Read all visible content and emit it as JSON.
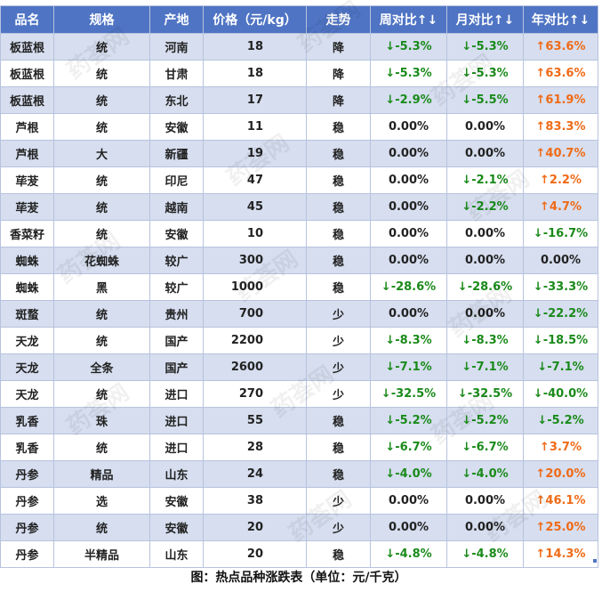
{
  "headers": [
    "品名",
    "规格",
    "产地",
    "价格（元/kg）",
    "走势",
    "周对比↑↓",
    "月对比↑↓",
    "年对比↑↓"
  ],
  "rows": [
    {
      "name": "板蓝根",
      "spec": "统",
      "origin": "河南",
      "price": "18",
      "trend": "降",
      "week": "↓-5.3%",
      "month": "↓-5.3%",
      "year": "↑63.6%"
    },
    {
      "name": "板蓝根",
      "spec": "统",
      "origin": "甘肃",
      "price": "18",
      "trend": "降",
      "week": "↓-5.3%",
      "month": "↓-5.3%",
      "year": "↑63.6%"
    },
    {
      "name": "板蓝根",
      "spec": "统",
      "origin": "东北",
      "price": "17",
      "trend": "降",
      "week": "↓-2.9%",
      "month": "↓-5.5%",
      "year": "↑61.9%"
    },
    {
      "name": "芦根",
      "spec": "统",
      "origin": "安徽",
      "price": "11",
      "trend": "稳",
      "week": "0.00%",
      "month": "0.00%",
      "year": "↑83.3%"
    },
    {
      "name": "芦根",
      "spec": "大",
      "origin": "新疆",
      "price": "19",
      "trend": "稳",
      "week": "0.00%",
      "month": "0.00%",
      "year": "↑40.7%"
    },
    {
      "name": "荜茇",
      "spec": "统",
      "origin": "印尼",
      "price": "47",
      "trend": "稳",
      "week": "0.00%",
      "month": "↓-2.1%",
      "year": "↑2.2%"
    },
    {
      "name": "荜茇",
      "spec": "统",
      "origin": "越南",
      "price": "45",
      "trend": "稳",
      "week": "0.00%",
      "month": "↓-2.2%",
      "year": "↑4.7%"
    },
    {
      "name": "香菜籽",
      "spec": "统",
      "origin": "安徽",
      "price": "10",
      "trend": "稳",
      "week": "0.00%",
      "month": "0.00%",
      "year": "↓-16.7%"
    },
    {
      "name": "蜘蛛",
      "spec": "花蜘蛛",
      "origin": "较广",
      "price": "300",
      "trend": "稳",
      "week": "0.00%",
      "month": "0.00%",
      "year": "0.00%"
    },
    {
      "name": "蜘蛛",
      "spec": "黑",
      "origin": "较广",
      "price": "1000",
      "trend": "稳",
      "week": "↓-28.6%",
      "month": "↓-28.6%",
      "year": "↓-33.3%"
    },
    {
      "name": "斑蝥",
      "spec": "统",
      "origin": "贵州",
      "price": "700",
      "trend": "少",
      "week": "0.00%",
      "month": "0.00%",
      "year": "↓-22.2%"
    },
    {
      "name": "天龙",
      "spec": "统",
      "origin": "国产",
      "price": "2200",
      "trend": "少",
      "week": "↓-8.3%",
      "month": "↓-8.3%",
      "year": "↓-18.5%"
    },
    {
      "name": "天龙",
      "spec": "全条",
      "origin": "国产",
      "price": "2600",
      "trend": "少",
      "week": "↓-7.1%",
      "month": "↓-7.1%",
      "year": "↓-7.1%"
    },
    {
      "name": "天龙",
      "spec": "统",
      "origin": "进口",
      "price": "270",
      "trend": "少",
      "week": "↓-32.5%",
      "month": "↓-32.5%",
      "year": "↓-40.0%"
    },
    {
      "name": "乳香",
      "spec": "珠",
      "origin": "进口",
      "price": "55",
      "trend": "稳",
      "week": "↓-5.2%",
      "month": "↓-5.2%",
      "year": "↓-5.2%"
    },
    {
      "name": "乳香",
      "spec": "统",
      "origin": "进口",
      "price": "28",
      "trend": "稳",
      "week": "↓-6.7%",
      "month": "↓-6.7%",
      "year": "↑3.7%"
    },
    {
      "name": "丹参",
      "spec": "精品",
      "origin": "山东",
      "price": "24",
      "trend": "稳",
      "week": "↓-4.0%",
      "month": "↓-4.0%",
      "year": "↑20.0%"
    },
    {
      "name": "丹参",
      "spec": "选",
      "origin": "安徽",
      "price": "38",
      "trend": "少",
      "week": "0.00%",
      "month": "0.00%",
      "year": "↑46.1%"
    },
    {
      "name": "丹参",
      "spec": "统",
      "origin": "安徽",
      "price": "20",
      "trend": "少",
      "week": "0.00%",
      "month": "0.00%",
      "year": "↑25.0%"
    },
    {
      "name": "丹参",
      "spec": "半精品",
      "origin": "山东",
      "price": "20",
      "trend": "稳",
      "week": "↓-4.8%",
      "month": "↓-4.8%",
      "year": "↑14.3%"
    }
  ],
  "caption": "图：热点品种涨跌表（单位：元/千克）",
  "watermark": "药荟网",
  "colors": {
    "header_bg": "#4f74c4",
    "band": "#d6deef",
    "up": "#f06a16",
    "down": "#1a8a1a"
  }
}
